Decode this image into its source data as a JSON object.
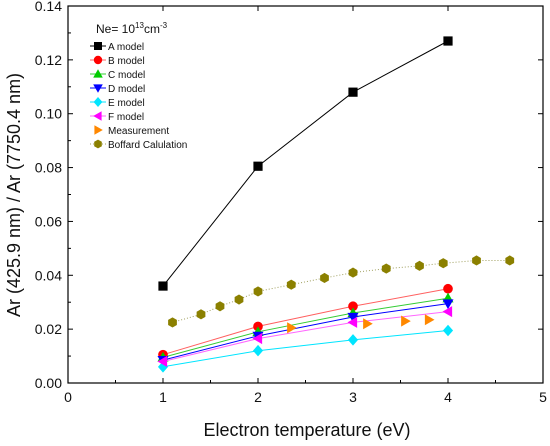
{
  "chart_data": {
    "type": "line",
    "title": "",
    "annotation": {
      "prefix": "Ne= 10",
      "sup": "13",
      "unit": "cm",
      "unit_sup": "-3"
    },
    "xlabel": "Electron temperature (eV)",
    "ylabel": "Ar (425.9 nm) / Ar (7750.4 nm)",
    "xlim": [
      0,
      5
    ],
    "ylim": [
      0,
      0.14
    ],
    "xticks": [
      0,
      1,
      2,
      3,
      4,
      5
    ],
    "yticks": [
      0.0,
      0.02,
      0.04,
      0.06,
      0.08,
      0.1,
      0.12,
      0.14
    ],
    "xtick_labels": [
      "0",
      "1",
      "2",
      "3",
      "4",
      "5"
    ],
    "ytick_labels": [
      "0.00",
      "0.02",
      "0.04",
      "0.06",
      "0.08",
      "0.10",
      "0.12",
      "0.14"
    ],
    "legend_position": "top-left",
    "series": [
      {
        "name": "A model",
        "marker": "square",
        "color": "#000000",
        "line_color": "#000000",
        "x": [
          1,
          2,
          3,
          4
        ],
        "y": [
          0.036,
          0.0805,
          0.108,
          0.127
        ]
      },
      {
        "name": "B model",
        "marker": "circle",
        "color": "#ff0000",
        "line_color": "#ff6060",
        "x": [
          1,
          2,
          3,
          4
        ],
        "y": [
          0.0105,
          0.021,
          0.0285,
          0.035
        ]
      },
      {
        "name": "C model",
        "marker": "triangle-up",
        "color": "#00cc00",
        "line_color": "#33cc33",
        "x": [
          1,
          2,
          3,
          4
        ],
        "y": [
          0.0095,
          0.019,
          0.026,
          0.0315
        ]
      },
      {
        "name": "D model",
        "marker": "triangle-down",
        "color": "#0000ff",
        "line_color": "#0000ff",
        "x": [
          1,
          2,
          3,
          4
        ],
        "y": [
          0.0085,
          0.0175,
          0.0245,
          0.0295
        ]
      },
      {
        "name": "E model",
        "marker": "diamond",
        "color": "#00e5ff",
        "line_color": "#00e5ff",
        "x": [
          1,
          2,
          3,
          4
        ],
        "y": [
          0.006,
          0.012,
          0.016,
          0.0195
        ]
      },
      {
        "name": "F model",
        "marker": "triangle-left",
        "color": "#ff00ff",
        "line_color": "#ff66ff",
        "x": [
          1,
          2,
          3,
          4
        ],
        "y": [
          0.008,
          0.0165,
          0.0225,
          0.0265
        ]
      },
      {
        "name": "Measurement",
        "marker": "triangle-right",
        "color": "#ff8800",
        "line_color": null,
        "x": [
          2.35,
          3.15,
          3.55,
          3.8
        ],
        "y": [
          0.0205,
          0.022,
          0.023,
          0.0235
        ]
      },
      {
        "name": "Boffard Calulation",
        "marker": "hexagon",
        "color": "#8b8000",
        "line_color": "#a0a060",
        "dotted": true,
        "x": [
          1.1,
          1.4,
          1.6,
          1.8,
          2.0,
          2.35,
          2.7,
          3.0,
          3.35,
          3.7,
          3.95,
          4.3,
          4.65
        ],
        "y": [
          0.0225,
          0.0255,
          0.0285,
          0.031,
          0.034,
          0.0365,
          0.039,
          0.041,
          0.0425,
          0.0435,
          0.0445,
          0.0455,
          0.0455
        ]
      }
    ]
  }
}
